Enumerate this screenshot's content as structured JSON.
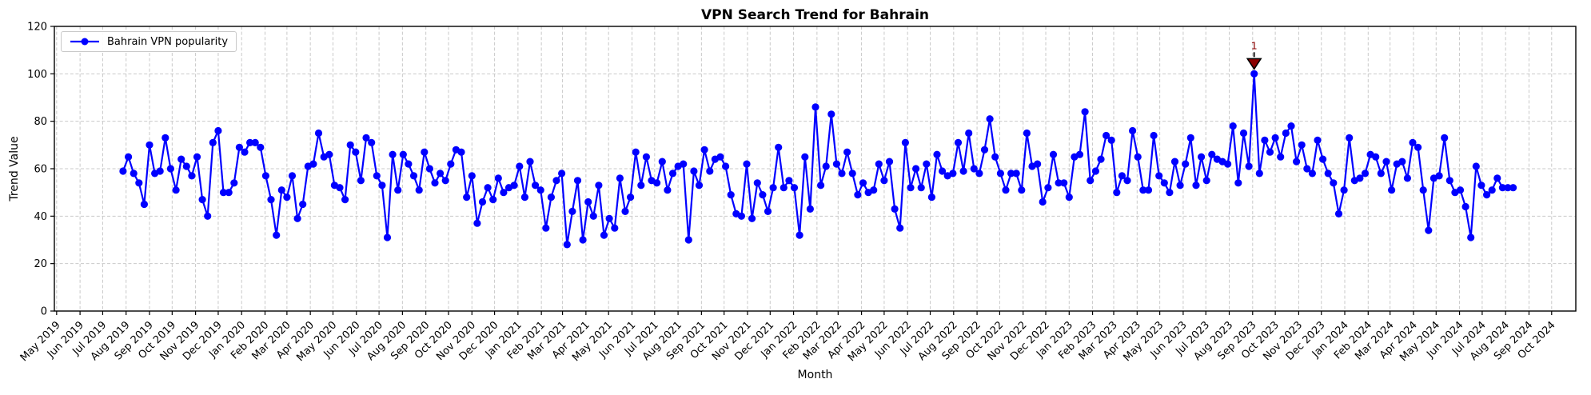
{
  "chart_data": {
    "type": "line",
    "title": "VPN Search Trend for Bahrain",
    "xlabel": "Month",
    "ylabel": "Trend Value",
    "ylim": [
      0,
      120
    ],
    "yticks": [
      0,
      20,
      40,
      60,
      80,
      100,
      120
    ],
    "grid": true,
    "grid_style": "dashed",
    "legend_position": "upper left",
    "x_axis_range": [
      "2019-04-28",
      "2024-11-02"
    ],
    "x_start_date": "2019-07-28",
    "x_interval_days": 7,
    "x_tick_labels": [
      "May 2019",
      "Jun 2019",
      "Jul 2019",
      "Aug 2019",
      "Sep 2019",
      "Oct 2019",
      "Nov 2019",
      "Dec 2019",
      "Jan 2020",
      "Feb 2020",
      "Mar 2020",
      "Apr 2020",
      "May 2020",
      "Jun 2020",
      "Jul 2020",
      "Aug 2020",
      "Sep 2020",
      "Oct 2020",
      "Nov 2020",
      "Dec 2020",
      "Jan 2021",
      "Feb 2021",
      "Mar 2021",
      "Apr 2021",
      "May 2021",
      "Jun 2021",
      "Jul 2021",
      "Aug 2021",
      "Sep 2021",
      "Oct 2021",
      "Nov 2021",
      "Dec 2021",
      "Jan 2022",
      "Feb 2022",
      "Mar 2022",
      "Apr 2022",
      "May 2022",
      "Jun 2022",
      "Jul 2022",
      "Aug 2022",
      "Sep 2022",
      "Oct 2022",
      "Nov 2022",
      "Dec 2022",
      "Jan 2023",
      "Feb 2023",
      "Mar 2023",
      "Apr 2023",
      "May 2023",
      "Jun 2023",
      "Jul 2023",
      "Aug 2023",
      "Sep 2023",
      "Oct 2023",
      "Nov 2023",
      "Dec 2023",
      "Jan 2024",
      "Feb 2024",
      "Mar 2024",
      "Apr 2024",
      "May 2024",
      "Jun 2024",
      "Jul 2024",
      "Aug 2024",
      "Sep 2024",
      "Oct 2024"
    ],
    "series": [
      {
        "name": "Bahrain VPN popularity",
        "color": "#0000ff",
        "marker": "circle",
        "values": [
          59,
          65,
          58,
          54,
          45,
          70,
          58,
          59,
          73,
          60,
          51,
          64,
          61,
          57,
          65,
          47,
          40,
          71,
          76,
          50,
          50,
          54,
          69,
          67,
          71,
          71,
          69,
          57,
          47,
          32,
          51,
          48,
          57,
          39,
          45,
          61,
          62,
          75,
          65,
          66,
          53,
          52,
          47,
          70,
          67,
          55,
          73,
          71,
          57,
          53,
          31,
          66,
          51,
          66,
          62,
          57,
          51,
          67,
          60,
          54,
          58,
          55,
          62,
          68,
          67,
          48,
          57,
          37,
          46,
          52,
          47,
          56,
          50,
          52,
          53,
          61,
          48,
          63,
          53,
          51,
          35,
          48,
          55,
          58,
          28,
          42,
          55,
          30,
          46,
          40,
          53,
          32,
          39,
          35,
          56,
          42,
          48,
          67,
          53,
          65,
          55,
          54,
          63,
          51,
          58,
          61,
          62,
          30,
          59,
          53,
          68,
          59,
          64,
          65,
          61,
          49,
          41,
          40,
          62,
          39,
          54,
          49,
          42,
          52,
          69,
          52,
          55,
          52,
          32,
          65,
          43,
          86,
          53,
          61,
          83,
          62,
          58,
          67,
          58,
          49,
          54,
          50,
          51,
          62,
          55,
          63,
          43,
          35,
          71,
          52,
          60,
          52,
          62,
          48,
          66,
          59,
          57,
          58,
          71,
          59,
          75,
          60,
          58,
          68,
          81,
          65,
          58,
          51,
          58,
          58,
          51,
          75,
          61,
          62,
          46,
          52,
          66,
          54,
          54,
          48,
          65,
          66,
          84,
          55,
          59,
          64,
          74,
          72,
          50,
          57,
          55,
          76,
          65,
          51,
          51,
          74,
          57,
          54,
          50,
          63,
          53,
          62,
          73,
          53,
          65,
          55,
          66,
          64,
          63,
          62,
          78,
          54,
          75,
          61,
          100,
          58,
          72,
          67,
          73,
          65,
          75,
          78,
          63,
          70,
          60,
          58,
          72,
          64,
          58,
          54,
          41,
          51,
          73,
          55,
          56,
          58,
          66,
          65,
          58,
          63,
          51,
          62,
          63,
          56,
          71,
          69,
          51,
          34,
          56,
          57,
          73,
          55,
          50,
          51,
          44,
          31,
          61,
          53,
          49,
          51,
          56,
          52,
          52,
          52
        ]
      }
    ],
    "annotation": {
      "label": "1",
      "series_index": 214,
      "value": 100,
      "marker": "triangle-down",
      "color": "#8b0000",
      "marker_edge_color": "#000000"
    },
    "colors": {
      "line": "#0000ff",
      "grid": "#c9c9c9",
      "spine": "#000000",
      "text": "#000000",
      "annotation": "#8b0000"
    }
  }
}
